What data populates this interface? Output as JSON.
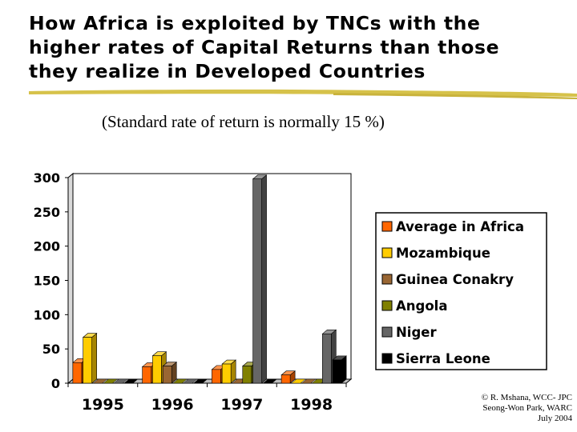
{
  "title_lines": [
    "How Africa is exploited by TNCs with the",
    "higher rates of Capital Returns than those",
    "they realize in Developed Countries"
  ],
  "subtitle": "(Standard rate of return is normally 15 %)",
  "credit": [
    "© R. Mshana, WCC- JPC",
    "Seong-Won Park, WARC",
    "July 2004"
  ],
  "chart_data": {
    "type": "bar",
    "title": "",
    "xlabel": "",
    "ylabel": "",
    "ylim": [
      0,
      300
    ],
    "yticks": [
      0,
      50,
      100,
      150,
      200,
      250,
      300
    ],
    "categories": [
      "1995",
      "1996",
      "1997",
      "1998"
    ],
    "legend_position": "right",
    "style": "3d",
    "series": [
      {
        "name": "Average in Africa",
        "color": "#ff6600",
        "values": [
          30,
          24,
          20,
          12
        ]
      },
      {
        "name": "Mozambique",
        "color": "#ffcc00",
        "values": [
          67,
          40,
          28,
          0
        ]
      },
      {
        "name": "Guinea Conakry",
        "color": "#996633",
        "values": [
          0,
          25,
          0,
          0
        ]
      },
      {
        "name": "Angola",
        "color": "#808000",
        "values": [
          0,
          0,
          25,
          0
        ]
      },
      {
        "name": "Niger",
        "color": "#666666",
        "values": [
          0,
          0,
          298,
          72
        ]
      },
      {
        "name": "Sierra Leone",
        "color": "#000000",
        "values": [
          0,
          0,
          0,
          34
        ]
      }
    ]
  }
}
